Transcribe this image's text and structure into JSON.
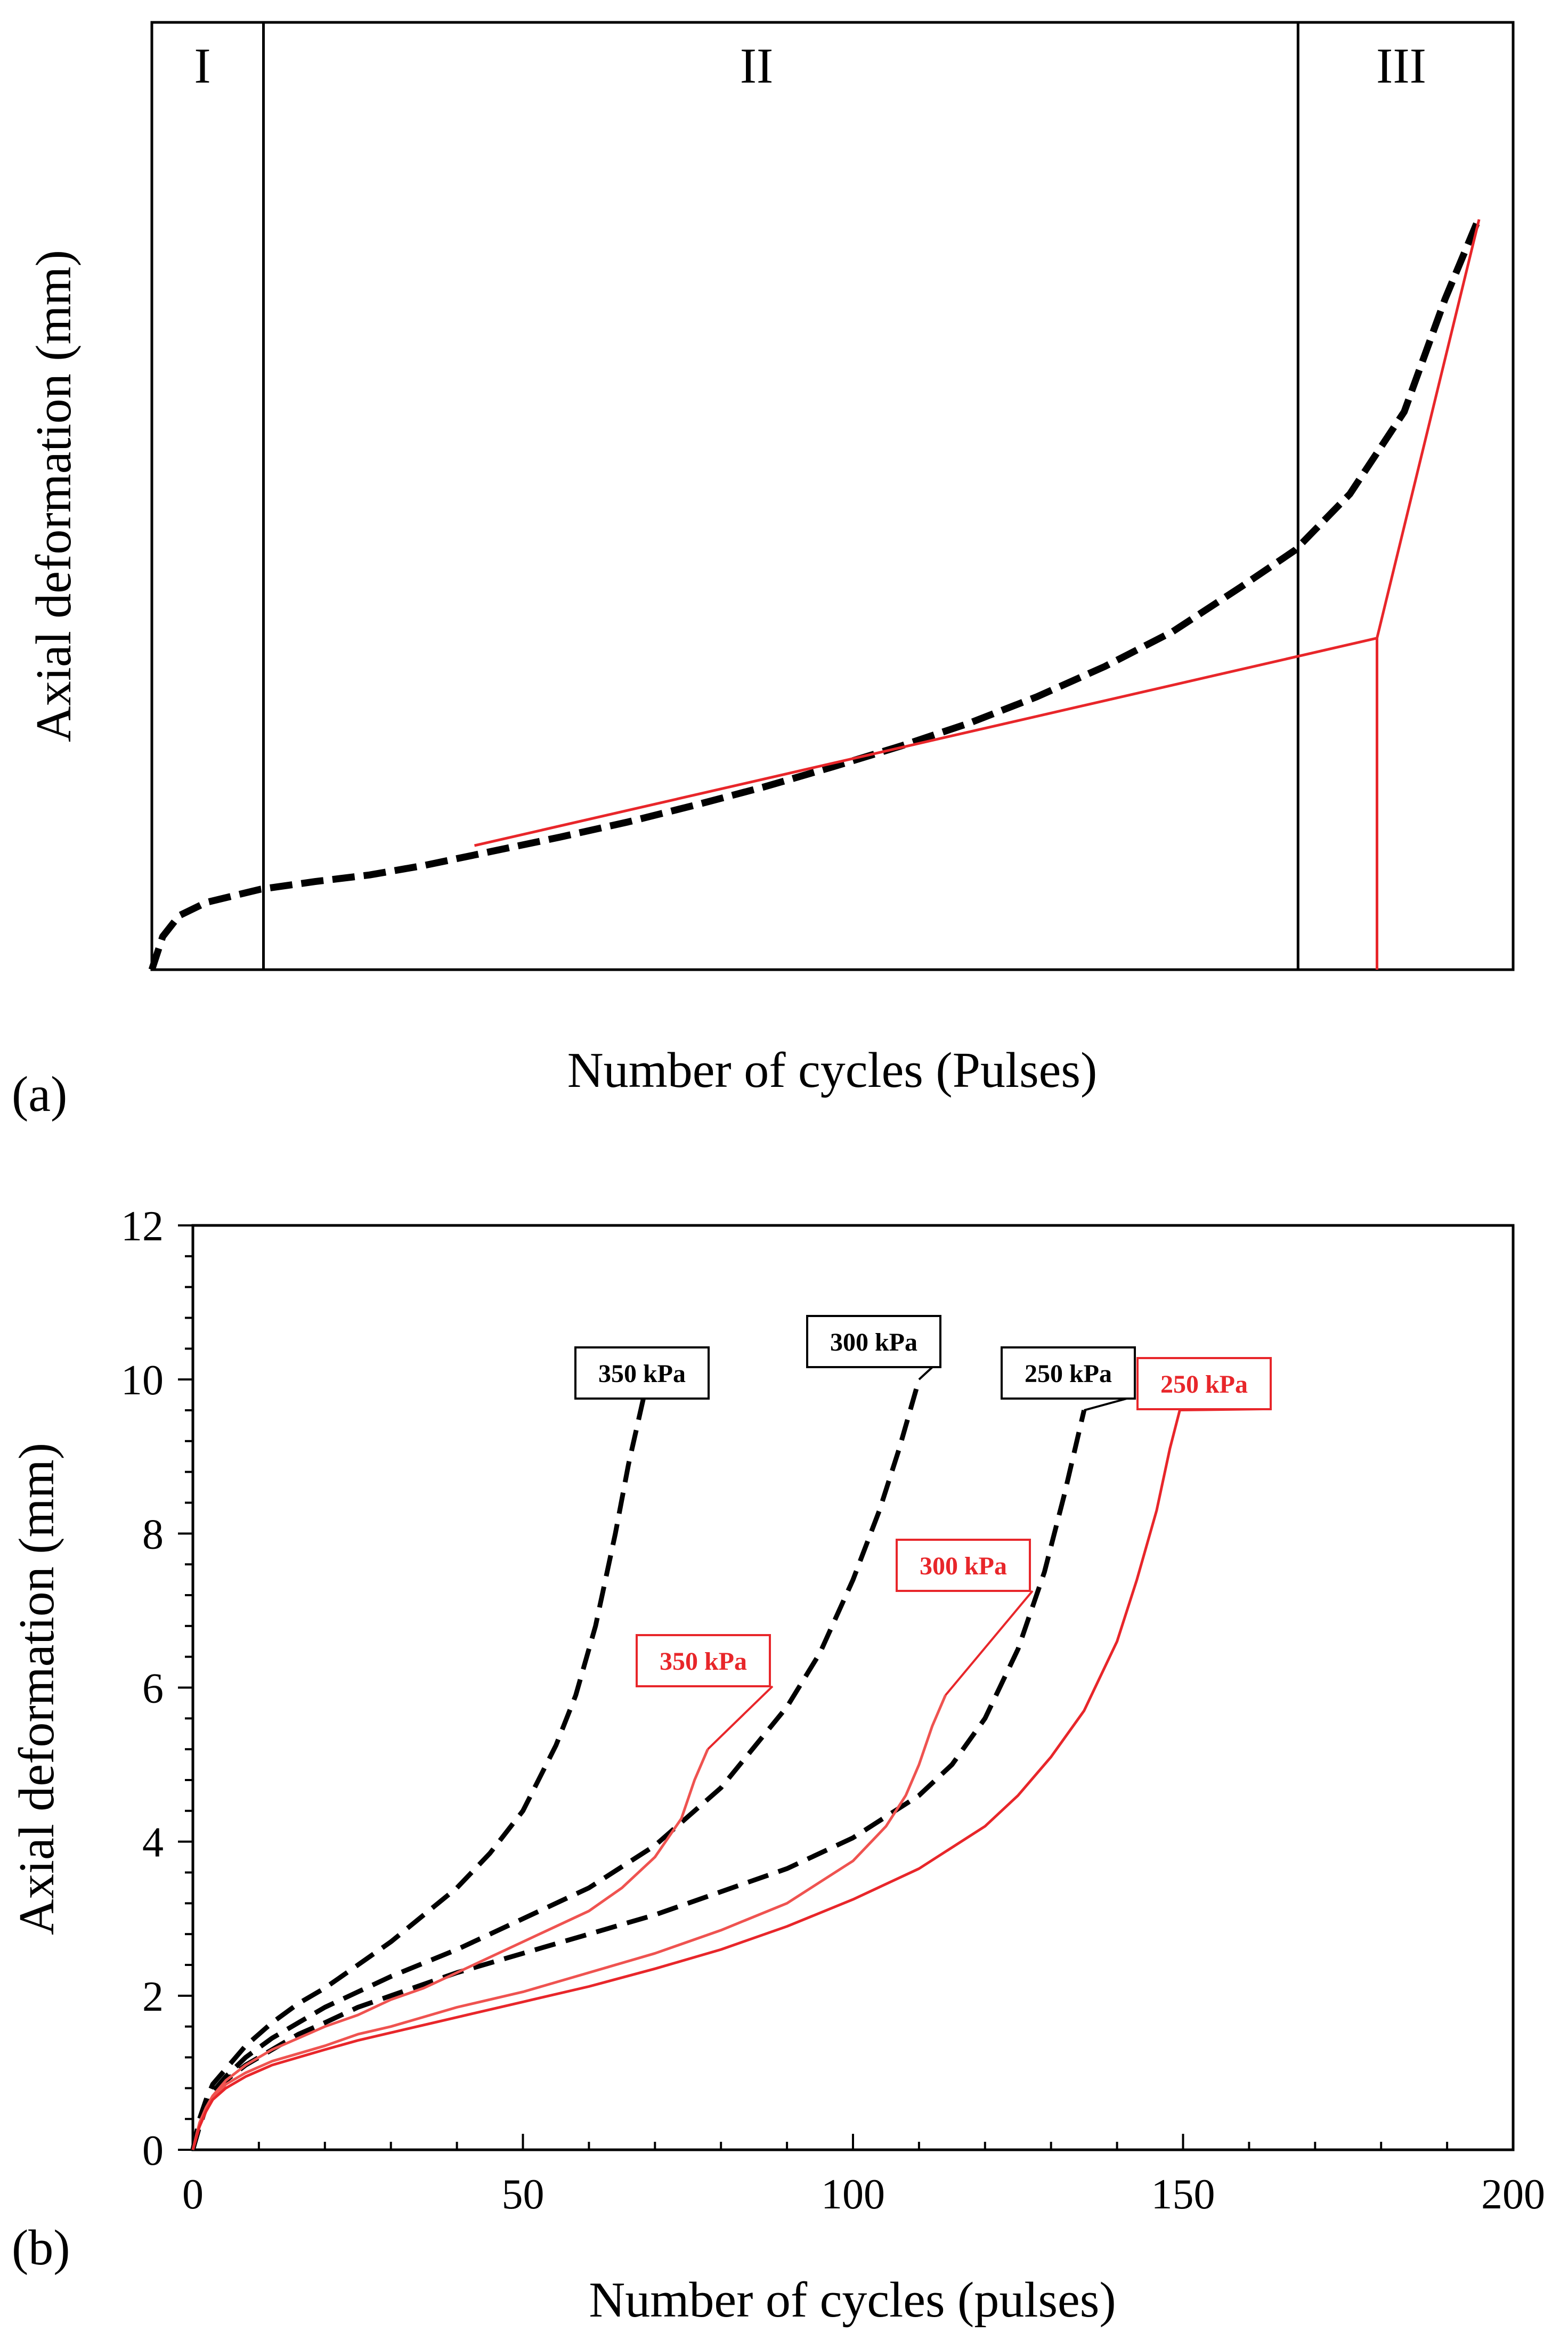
{
  "panel_a": {
    "label": "(a)",
    "xlabel": "Number of cycles (Pulses)",
    "ylabel": "Axial deformation (mm)",
    "regions": [
      "I",
      "II",
      "III"
    ]
  },
  "panel_b": {
    "label": "(b)",
    "xlabel": "Number of cycles (pulses)",
    "ylabel": "Axial deformation (mm)"
  },
  "colors": {
    "black": "#000000",
    "red": "#e8262a",
    "light_red": "#ef5350"
  },
  "chart_data": [
    {
      "type": "line",
      "title": "",
      "xlabel": "Number of cycles (Pulses)",
      "ylabel": "Axial deformation (mm)",
      "xlim": [
        0,
        100
      ],
      "ylim": [
        0,
        100
      ],
      "ticks_shown": false,
      "grid": false,
      "region_boundaries_x": [
        8.2,
        84.2
      ],
      "region_labels": [
        "I",
        "II",
        "III"
      ],
      "series": [
        {
          "style": "black-dashed",
          "x": [
            0,
            0.8,
            2,
            4,
            6,
            8,
            12,
            16,
            20,
            25,
            30,
            35,
            40,
            45,
            50,
            55,
            60,
            65,
            70,
            75,
            80,
            84,
            88,
            92,
            95,
            97.5
          ],
          "y": [
            0,
            3.5,
            5.7,
            7.1,
            7.8,
            8.5,
            9.3,
            10.0,
            11.0,
            12.5,
            14.0,
            15.6,
            17.4,
            19.3,
            21.4,
            23.6,
            26.0,
            28.8,
            32.0,
            35.7,
            40.4,
            44.3,
            50.2,
            58.9,
            70.8,
            79.4
          ]
        },
        {
          "style": "red-tangent",
          "x": [
            23.7,
            90.0
          ],
          "y": [
            13.1,
            35.0
          ]
        },
        {
          "style": "red-tangent",
          "x": [
            90.0,
            97.5
          ],
          "y": [
            35.0,
            79.2
          ]
        },
        {
          "style": "red-vertical",
          "x": [
            90.0,
            90.0
          ],
          "y": [
            35.0,
            0
          ]
        }
      ]
    },
    {
      "type": "line",
      "title": "",
      "xlabel": "Number of cycles (pulses)",
      "ylabel": "Axial deformation (mm)",
      "xlim": [
        0,
        200
      ],
      "ylim": [
        0,
        12
      ],
      "xticks": [
        "0",
        "50",
        "100",
        "150",
        "200"
      ],
      "yticks": [
        "0",
        "2",
        "4",
        "6",
        "8",
        "10",
        "12"
      ],
      "grid": false,
      "series": [
        {
          "name": "350 kPa",
          "color": "#000000",
          "style": "dashed",
          "x": [
            0,
            1,
            2,
            3,
            5,
            8,
            12,
            16,
            20,
            25,
            30,
            35,
            40,
            45,
            50,
            55,
            58,
            61,
            64,
            66,
            68.5
          ],
          "y": [
            0,
            0.4,
            0.65,
            0.85,
            1.05,
            1.35,
            1.65,
            1.9,
            2.1,
            2.4,
            2.7,
            3.05,
            3.4,
            3.85,
            4.4,
            5.25,
            5.9,
            6.8,
            8.0,
            8.9,
            9.85
          ]
        },
        {
          "name": "300 kPa",
          "color": "#000000",
          "style": "dashed",
          "x": [
            0,
            1,
            2,
            3,
            5,
            8,
            12,
            16,
            20,
            25,
            30,
            40,
            50,
            60,
            70,
            80,
            90,
            95,
            100,
            104,
            107,
            110
          ],
          "y": [
            0,
            0.35,
            0.6,
            0.75,
            0.95,
            1.2,
            1.45,
            1.65,
            1.85,
            2.05,
            2.25,
            2.6,
            3.0,
            3.4,
            3.95,
            4.7,
            5.75,
            6.45,
            7.4,
            8.3,
            9.1,
            10.0
          ]
        },
        {
          "name": "250 kPa",
          "color": "#000000",
          "style": "dashed",
          "x": [
            0,
            1,
            2,
            3,
            5,
            8,
            12,
            16,
            20,
            25,
            30,
            40,
            50,
            60,
            70,
            80,
            90,
            100,
            110,
            115,
            120,
            125,
            129,
            132,
            135
          ],
          "y": [
            0,
            0.3,
            0.55,
            0.7,
            0.9,
            1.1,
            1.3,
            1.5,
            1.65,
            1.85,
            2.0,
            2.3,
            2.55,
            2.8,
            3.05,
            3.35,
            3.65,
            4.05,
            4.6,
            5.0,
            5.6,
            6.5,
            7.5,
            8.5,
            9.6
          ]
        },
        {
          "name": "350 kPa",
          "color": "#ef5350",
          "style": "solid",
          "x": [
            0,
            1,
            2,
            3,
            5,
            8,
            12,
            16,
            20,
            25,
            30,
            35,
            40,
            45,
            50,
            55,
            60,
            65,
            70,
            74,
            76,
            78
          ],
          "y": [
            0,
            0.35,
            0.55,
            0.7,
            0.9,
            1.1,
            1.3,
            1.45,
            1.6,
            1.75,
            1.95,
            2.1,
            2.3,
            2.5,
            2.7,
            2.9,
            3.1,
            3.4,
            3.8,
            4.3,
            4.8,
            5.2
          ]
        },
        {
          "name": "300 kPa",
          "color": "#ef5350",
          "style": "solid",
          "x": [
            0,
            1,
            2,
            3,
            5,
            8,
            12,
            16,
            20,
            25,
            30,
            40,
            50,
            60,
            70,
            80,
            90,
            100,
            105,
            108,
            110,
            112,
            114
          ],
          "y": [
            0,
            0.3,
            0.5,
            0.65,
            0.85,
            1.0,
            1.15,
            1.25,
            1.35,
            1.5,
            1.6,
            1.85,
            2.05,
            2.3,
            2.55,
            2.85,
            3.2,
            3.75,
            4.2,
            4.6,
            5.0,
            5.5,
            5.9
          ]
        },
        {
          "name": "250 kPa",
          "color": "#e8262a",
          "style": "solid",
          "x": [
            0,
            1,
            2,
            3,
            5,
            8,
            12,
            16,
            20,
            25,
            30,
            40,
            50,
            60,
            70,
            80,
            90,
            100,
            110,
            120,
            125,
            130,
            135,
            140,
            143,
            146,
            148,
            149.5
          ],
          "y": [
            0,
            0.3,
            0.5,
            0.65,
            0.8,
            0.95,
            1.1,
            1.2,
            1.3,
            1.42,
            1.52,
            1.72,
            1.92,
            2.12,
            2.35,
            2.6,
            2.9,
            3.25,
            3.65,
            4.2,
            4.6,
            5.1,
            5.7,
            6.6,
            7.4,
            8.3,
            9.1,
            9.6
          ]
        }
      ],
      "annotations": [
        {
          "text": "350 kPa",
          "color": "#000000",
          "x": 68.5,
          "y": 9.85
        },
        {
          "text": "300 kPa",
          "color": "#000000",
          "x": 110,
          "y": 10.0
        },
        {
          "text": "250 kPa",
          "color": "#000000",
          "x": 135,
          "y": 9.6
        },
        {
          "text": "250 kPa",
          "color": "#e8262a",
          "x": 149.5,
          "y": 9.6
        },
        {
          "text": "300 kPa",
          "color": "#e8262a",
          "x": 114,
          "y": 5.9
        },
        {
          "text": "350 kPa",
          "color": "#e8262a",
          "x": 78,
          "y": 5.2
        }
      ]
    }
  ]
}
